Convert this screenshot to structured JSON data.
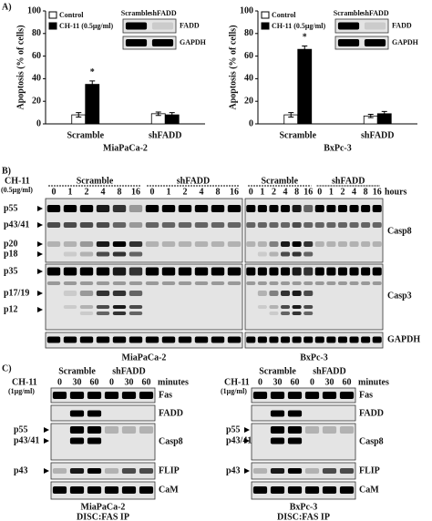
{
  "panel_labels": [
    "A)",
    "B)",
    "C)"
  ],
  "chart_data": [
    {
      "type": "bar",
      "ylabel": "Apoptosis (% of cells)",
      "xlabel": "MiaPaCa-2",
      "categories": [
        "Scramble",
        "shFADD"
      ],
      "series": [
        {
          "name": "Control",
          "color": "#ffffff",
          "values": [
            8,
            9
          ],
          "errors": [
            2,
            1.5
          ]
        },
        {
          "name": "CH-11 (0.5μg/ml)",
          "color": "#000000",
          "values": [
            35,
            8
          ],
          "errors": [
            3,
            2
          ]
        }
      ],
      "ylim": [
        0,
        100
      ],
      "yticks": [
        0,
        20,
        40,
        60,
        80,
        100
      ],
      "annotation": "*",
      "inset": {
        "columns": [
          "Scramble",
          "shFADD"
        ],
        "rows": [
          "FADD",
          "GAPDH"
        ]
      }
    },
    {
      "type": "bar",
      "ylabel": "Apoptosis (% of cells)",
      "xlabel": "BxPc-3",
      "categories": [
        "Scramble",
        "shFADD"
      ],
      "series": [
        {
          "name": "Control",
          "color": "#ffffff",
          "values": [
            8,
            7
          ],
          "errors": [
            2,
            1.5
          ]
        },
        {
          "name": "CH-11 (0.5μg/ml)",
          "color": "#000000",
          "values": [
            66,
            9
          ],
          "errors": [
            3,
            2
          ]
        }
      ],
      "ylim": [
        0,
        100
      ],
      "yticks": [
        0,
        20,
        40,
        60,
        80,
        100
      ],
      "annotation": "*",
      "inset": {
        "columns": [
          "Scramble",
          "shFADD"
        ],
        "rows": [
          "FADD",
          "GAPDH"
        ]
      }
    }
  ],
  "panel_b": {
    "treatment": "CH-11",
    "dose": "(0.5μg/ml)",
    "groups": [
      "Scramble",
      "shFADD"
    ],
    "lanes": [
      0,
      1,
      2,
      4,
      8,
      16
    ],
    "unit": "hours",
    "left_labels": [
      "p55",
      "p43/41",
      "p20",
      "p18",
      "p35",
      "p17/19",
      "p12"
    ],
    "right_labels": [
      "Casp8",
      "Casp3",
      "GAPDH"
    ],
    "cell_lines": [
      "MiaPaCa-2",
      "BxPc-3"
    ]
  },
  "panel_c": [
    {
      "treatment": "CH-11",
      "dose": "(1μg/ml)",
      "groups": [
        "Scramble",
        "shFADD"
      ],
      "lanes": [
        0,
        30,
        60
      ],
      "unit": "minutes",
      "left_labels": [
        "p55",
        "p43/41",
        "p43"
      ],
      "right_labels": [
        "Fas",
        "FADD",
        "Casp8",
        "FLIP",
        "CaM"
      ],
      "cell_line": "MiaPaCa-2",
      "assay": "DISC:FAS IP"
    },
    {
      "treatment": "CH-11",
      "dose": "(1μg/ml)",
      "groups": [
        "Scramble",
        "shFADD"
      ],
      "lanes": [
        0,
        30,
        60
      ],
      "unit": "minutes",
      "left_labels": [
        "p55",
        "p43/41",
        "p43"
      ],
      "right_labels": [
        "Fas",
        "FADD",
        "Casp8",
        "FLIP",
        "CaM"
      ],
      "cell_line": "BxPc-3",
      "assay": "DISC:FAS IP"
    }
  ]
}
